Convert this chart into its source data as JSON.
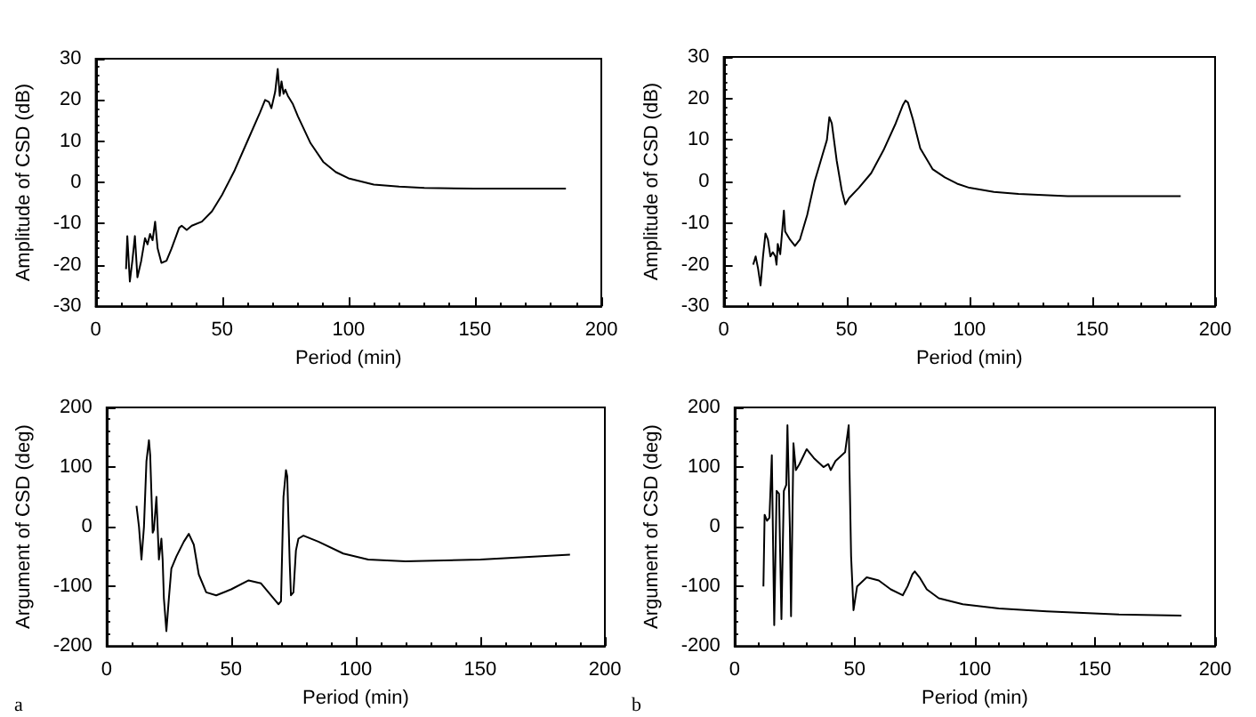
{
  "chart_data": [
    {
      "type": "line",
      "xlabel": "Period (min)",
      "ylabel": "Amplitude of CSD (dB)",
      "xlim": [
        0,
        200
      ],
      "xticks": [
        0,
        50,
        100,
        150,
        200
      ],
      "ylim": [
        -30,
        30
      ],
      "yticks": [
        -30,
        -20,
        -10,
        0,
        10,
        20,
        30
      ],
      "grid": false,
      "series": [
        {
          "color": "#000000",
          "x": [
            12,
            12.5,
            13.5,
            14.5,
            15.5,
            16.5,
            18,
            19.5,
            20.5,
            21.5,
            22.5,
            23.5,
            24.5,
            26,
            28,
            30,
            33,
            34,
            36,
            38,
            42,
            46,
            50,
            55,
            60,
            65,
            67,
            68.5,
            69.5,
            71,
            72,
            72.8,
            73.5,
            74.3,
            75,
            76,
            78,
            80,
            85,
            90,
            95,
            100,
            110,
            120,
            130,
            150,
            186
          ],
          "values": [
            -21,
            -13,
            -24,
            -19,
            -13,
            -23,
            -19,
            -13.5,
            -15,
            -12.5,
            -14,
            -9.5,
            -16,
            -19.5,
            -19,
            -16,
            -11,
            -10.5,
            -11.5,
            -10.5,
            -9.5,
            -7,
            -3,
            3,
            10,
            17,
            20,
            19.5,
            18,
            22,
            27.5,
            21,
            24.5,
            21.5,
            22.5,
            21,
            19,
            16,
            9.5,
            5,
            2.5,
            1,
            -0.5,
            -1,
            -1.3,
            -1.5,
            -1.5
          ]
        }
      ]
    },
    {
      "type": "line",
      "xlabel": "Period (min)",
      "ylabel": "Amplitude of CSD (dB)",
      "xlim": [
        0,
        200
      ],
      "xticks": [
        0,
        50,
        100,
        150,
        200
      ],
      "ylim": [
        -30,
        30
      ],
      "yticks": [
        -30,
        -20,
        -10,
        0,
        10,
        20,
        30
      ],
      "grid": false,
      "series": [
        {
          "color": "#000000",
          "x": [
            12,
            13,
            14,
            15,
            16,
            17,
            18,
            19,
            20,
            21,
            21.5,
            22,
            23,
            23.5,
            24.5,
            25,
            27,
            29,
            31,
            34,
            37,
            40,
            42,
            43,
            44,
            46,
            48,
            49.5,
            51,
            55,
            60,
            65,
            70,
            73,
            74,
            75,
            77,
            80,
            85,
            90,
            95,
            100,
            110,
            120,
            140,
            186
          ],
          "values": [
            -20,
            -18,
            -21,
            -25,
            -18,
            -12.5,
            -14,
            -18,
            -17,
            -18,
            -20,
            -15,
            -17.5,
            -14,
            -7,
            -12,
            -14,
            -15.5,
            -14,
            -8,
            0,
            6,
            10,
            15.5,
            14,
            5,
            -2,
            -5.5,
            -4,
            -1.5,
            2,
            7.5,
            14,
            18.5,
            19.5,
            19,
            15,
            8,
            3,
            1,
            -0.5,
            -1.5,
            -2.5,
            -3,
            -3.5,
            -3.5
          ]
        }
      ]
    },
    {
      "type": "line",
      "xlabel": "Period (min)",
      "ylabel": "Argument of CSD (deg)",
      "xlim": [
        0,
        200
      ],
      "xticks": [
        0,
        50,
        100,
        150,
        200
      ],
      "ylim": [
        -200,
        200
      ],
      "yticks": [
        -200,
        -100,
        0,
        100,
        200
      ],
      "grid": false,
      "annotations": [
        "a"
      ],
      "series": [
        {
          "color": "#000000",
          "x": [
            12,
            13,
            14,
            15,
            16,
            17,
            17.5,
            18.5,
            19,
            20,
            21,
            22,
            22.5,
            23,
            24,
            25,
            26,
            28,
            31,
            33,
            35,
            37,
            40,
            44,
            50,
            57,
            62,
            67,
            69,
            70,
            71,
            72,
            72.5,
            73.5,
            74,
            75,
            76,
            77,
            79,
            85,
            95,
            105,
            120,
            150,
            186
          ],
          "values": [
            35,
            0,
            -55,
            0,
            110,
            145,
            120,
            -10,
            -5,
            50,
            -55,
            -20,
            -55,
            -120,
            -175,
            -120,
            -70,
            -50,
            -25,
            -12,
            -30,
            -80,
            -110,
            -115,
            -105,
            -90,
            -95,
            -120,
            -130,
            -125,
            50,
            95,
            85,
            -60,
            -115,
            -110,
            -40,
            -20,
            -15,
            -25,
            -45,
            -55,
            -58,
            -55,
            -47
          ]
        }
      ]
    },
    {
      "type": "line",
      "xlabel": "Period (min)",
      "ylabel": "Argument of CSD (deg)",
      "xlim": [
        0,
        200
      ],
      "xticks": [
        0,
        50,
        100,
        150,
        200
      ],
      "ylim": [
        -200,
        200
      ],
      "yticks": [
        -200,
        -100,
        0,
        100,
        200
      ],
      "grid": false,
      "annotations": [
        "b"
      ],
      "series": [
        {
          "color": "#000000",
          "x": [
            12,
            12.5,
            13.5,
            14.5,
            15.5,
            16.5,
            17.5,
            18.5,
            19.5,
            20.5,
            21.5,
            22,
            23,
            23.5,
            24.5,
            25.5,
            27,
            30,
            33,
            37,
            39,
            40,
            42,
            46,
            47.5,
            48.5,
            49.5,
            51,
            55,
            60,
            65,
            70,
            72,
            74,
            75,
            77,
            80,
            85,
            95,
            110,
            130,
            160,
            186
          ],
          "values": [
            -100,
            20,
            10,
            15,
            120,
            -165,
            60,
            55,
            -155,
            60,
            70,
            170,
            0,
            -150,
            140,
            95,
            105,
            130,
            115,
            100,
            105,
            95,
            110,
            125,
            170,
            -50,
            -140,
            -100,
            -85,
            -90,
            -105,
            -115,
            -100,
            -80,
            -75,
            -85,
            -105,
            -120,
            -130,
            -137,
            -142,
            -147,
            -149
          ]
        }
      ]
    }
  ]
}
